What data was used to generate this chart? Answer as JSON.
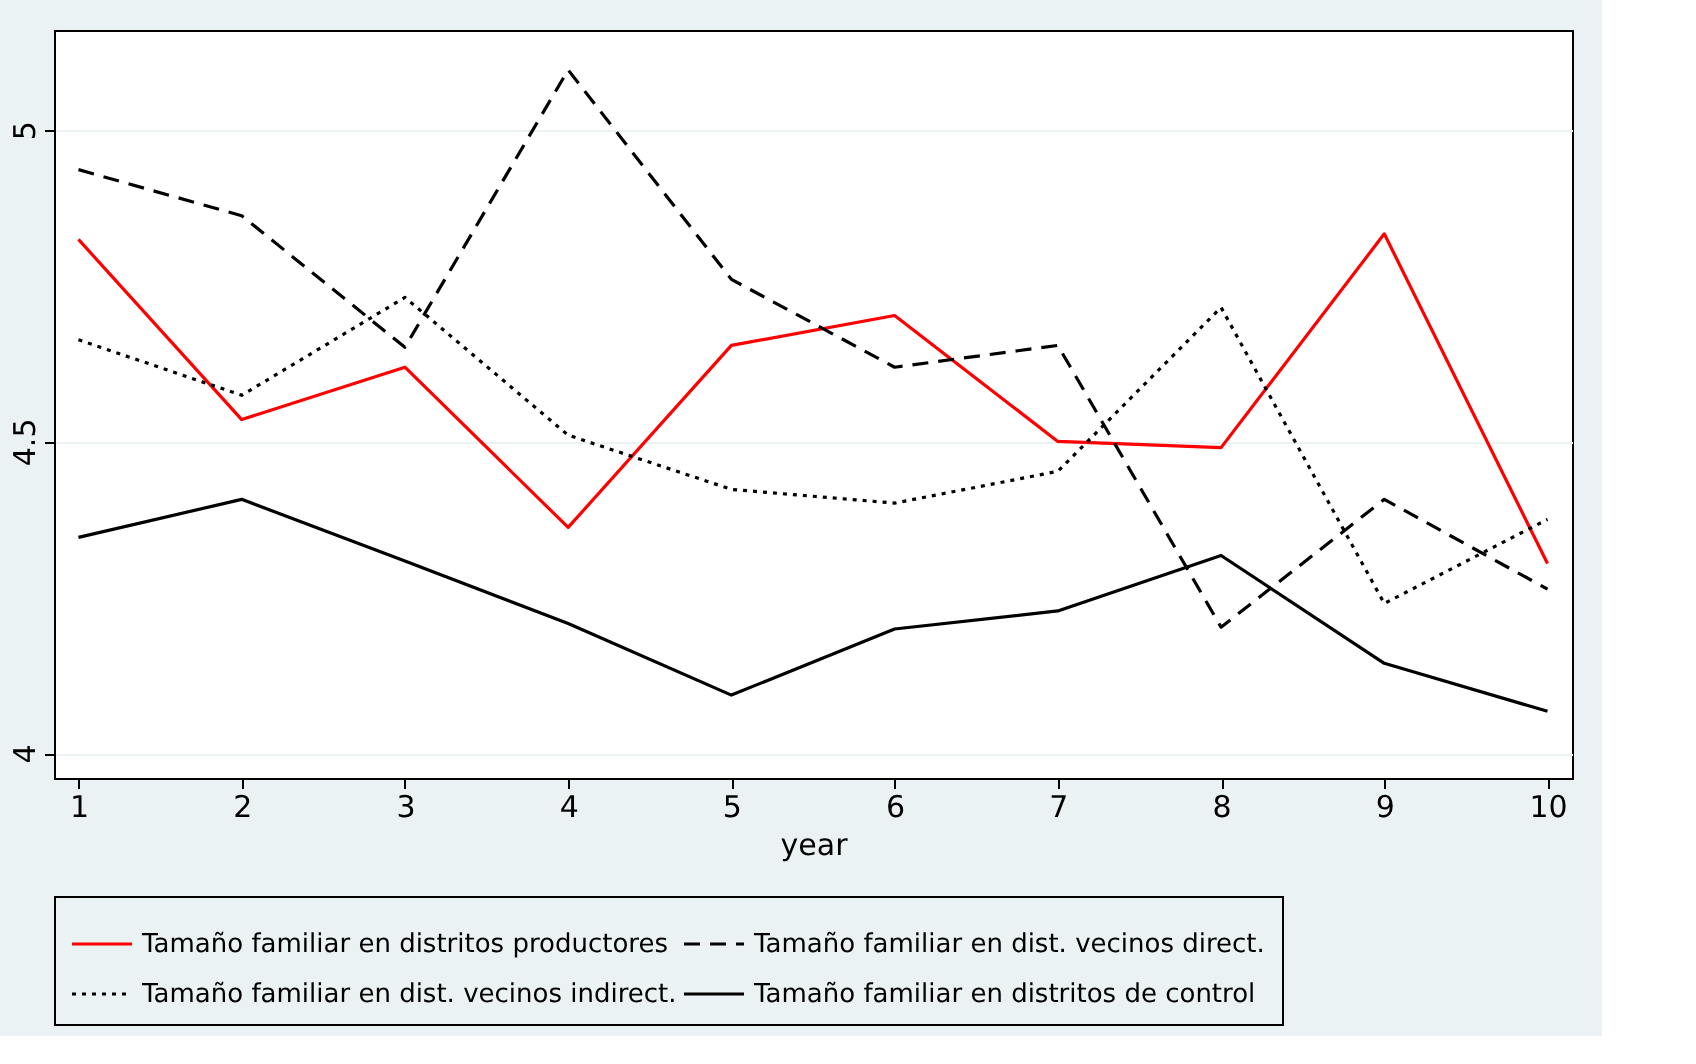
{
  "chart_data": {
    "type": "line",
    "xlabel": "year",
    "x": [
      1,
      2,
      3,
      4,
      5,
      6,
      7,
      8,
      9,
      10
    ],
    "series": [
      {
        "name": "Tamaño familiar en distritos productores",
        "color": "#ff0000",
        "line_style": "solid",
        "values": [
          4.824,
          4.535,
          4.619,
          4.362,
          4.654,
          4.702,
          4.5,
          4.49,
          4.833,
          4.304
        ]
      },
      {
        "name": "Tamaño familiar en dist. vecinos direct.",
        "color": "#000000",
        "line_style": "dashed",
        "values": [
          4.936,
          4.862,
          4.651,
          5.096,
          4.76,
          4.619,
          4.654,
          4.202,
          4.407,
          4.263
        ]
      },
      {
        "name": "Tamaño familiar en dist. vecinos indirect.",
        "color": "#000000",
        "line_style": "dotted",
        "values": [
          4.663,
          4.574,
          4.731,
          4.51,
          4.423,
          4.401,
          4.452,
          4.715,
          4.24,
          4.375
        ]
      },
      {
        "name": "Tamaño familiar en distritos de control",
        "color": "#000000",
        "line_style": "solid",
        "values": [
          4.346,
          4.407,
          4.308,
          4.208,
          4.093,
          4.199,
          4.228,
          4.317,
          4.144,
          4.067
        ]
      }
    ],
    "xlim": [
      0.85,
      10.15
    ],
    "ylim": [
      3.96,
      5.16
    ],
    "xticks": [
      1,
      2,
      3,
      4,
      5,
      6,
      7,
      8,
      9,
      10
    ],
    "yticks": [
      4,
      4.5,
      5
    ],
    "grid": "y",
    "legend": "bottom",
    "marker": "none"
  }
}
